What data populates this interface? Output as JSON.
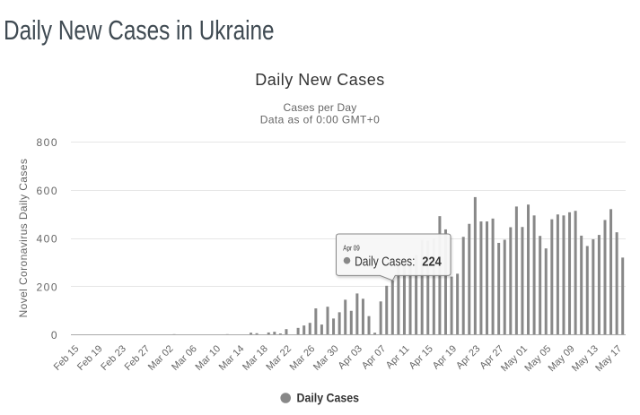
{
  "page": {
    "title": "Daily New Cases in Ukraine"
  },
  "chart": {
    "title": "Daily New Cases",
    "subtitle_line1": "Cases per Day",
    "subtitle_line2": "Data as of 0:00 GMT+0",
    "y_axis_title": "Novel Coronavirus Daily Cases",
    "legend_label": "Daily Cases",
    "colors": {
      "bar": "#888888",
      "axis_line": "#aaaaaa",
      "grid_line": "#e6e6e6",
      "axis_label": "#666666",
      "chart_title": "#333333",
      "subtitle": "#666666",
      "legend_text": "#333333",
      "page_title": "#3f4a52",
      "tooltip_bg": "#f8f8f8",
      "tooltip_border": "#888888",
      "tooltip_text": "#333333"
    }
  },
  "tooltip": {
    "date": "Apr 09",
    "series": "Daily Cases",
    "separator": ": ",
    "value": "224",
    "bullet": "marker-dot"
  },
  "chart_data": {
    "type": "bar",
    "title": "Daily New Cases",
    "subtitle": [
      "Cases per Day",
      "Data as of 0:00 GMT+0"
    ],
    "xlabel": "",
    "ylabel": "Novel Coronavirus Daily Cases",
    "ylim": [
      0,
      800
    ],
    "yticks": [
      0,
      200,
      400,
      600,
      800
    ],
    "grid": "horizontal",
    "legend_position": "bottom",
    "x_tick_labels": [
      "Feb 15",
      "Feb 19",
      "Feb 23",
      "Feb 27",
      "Mar 02",
      "Mar 06",
      "Mar 10",
      "Mar 14",
      "Mar 18",
      "Mar 22",
      "Mar 26",
      "Mar 30",
      "Apr 03",
      "Apr 07",
      "Apr 11",
      "Apr 15",
      "Apr 19",
      "Apr 23",
      "Apr 27",
      "May 01",
      "May 05",
      "May 09",
      "May 13",
      "May 17"
    ],
    "categories": [
      "Feb 15",
      "Feb 16",
      "Feb 17",
      "Feb 18",
      "Feb 19",
      "Feb 20",
      "Feb 21",
      "Feb 22",
      "Feb 23",
      "Feb 24",
      "Feb 25",
      "Feb 26",
      "Feb 27",
      "Feb 28",
      "Feb 29",
      "Mar 01",
      "Mar 02",
      "Mar 03",
      "Mar 04",
      "Mar 05",
      "Mar 06",
      "Mar 07",
      "Mar 08",
      "Mar 09",
      "Mar 10",
      "Mar 11",
      "Mar 12",
      "Mar 13",
      "Mar 14",
      "Mar 15",
      "Mar 16",
      "Mar 17",
      "Mar 18",
      "Mar 19",
      "Mar 20",
      "Mar 21",
      "Mar 22",
      "Mar 23",
      "Mar 24",
      "Mar 25",
      "Mar 26",
      "Mar 27",
      "Mar 28",
      "Mar 29",
      "Mar 30",
      "Mar 31",
      "Apr 01",
      "Apr 02",
      "Apr 03",
      "Apr 04",
      "Apr 05",
      "Apr 06",
      "Apr 07",
      "Apr 08",
      "Apr 09",
      "Apr 10",
      "Apr 11",
      "Apr 12",
      "Apr 13",
      "Apr 14",
      "Apr 15",
      "Apr 16",
      "Apr 17",
      "Apr 18",
      "Apr 19",
      "Apr 20",
      "Apr 21",
      "Apr 22",
      "Apr 23",
      "Apr 24",
      "Apr 25",
      "Apr 26",
      "Apr 27",
      "Apr 28",
      "Apr 29",
      "Apr 30",
      "May 01",
      "May 02",
      "May 03",
      "May 04",
      "May 05",
      "May 06",
      "May 07",
      "May 08",
      "May 09",
      "May 10",
      "May 11",
      "May 12",
      "May 13",
      "May 14",
      "May 15",
      "May 16",
      "May 17",
      "May 18"
    ],
    "series": [
      {
        "name": "Daily Cases",
        "values": [
          0,
          0,
          0,
          0,
          0,
          0,
          0,
          0,
          0,
          0,
          0,
          0,
          0,
          0,
          0,
          0,
          0,
          1,
          0,
          0,
          0,
          0,
          0,
          0,
          0,
          0,
          1,
          0,
          0,
          0,
          7,
          5,
          0,
          8,
          11,
          4,
          22,
          0,
          27,
          37,
          48,
          108,
          41,
          115,
          66,
          92,
          144,
          98,
          170,
          148,
          76,
          7,
          137,
          202,
          224,
          305,
          300,
          290,
          330,
          392,
          390,
          399,
          491,
          436,
          240,
          252,
          405,
          459,
          570,
          469,
          469,
          481,
          380,
          393,
          445,
          531,
          446,
          539,
          494,
          409,
          357,
          478,
          498,
          494,
          507,
          513,
          410,
          367,
          395,
          413,
          475,
          520,
          424,
          319
        ]
      }
    ],
    "highlighted_point": {
      "category": "Apr 09",
      "value": 224
    }
  }
}
